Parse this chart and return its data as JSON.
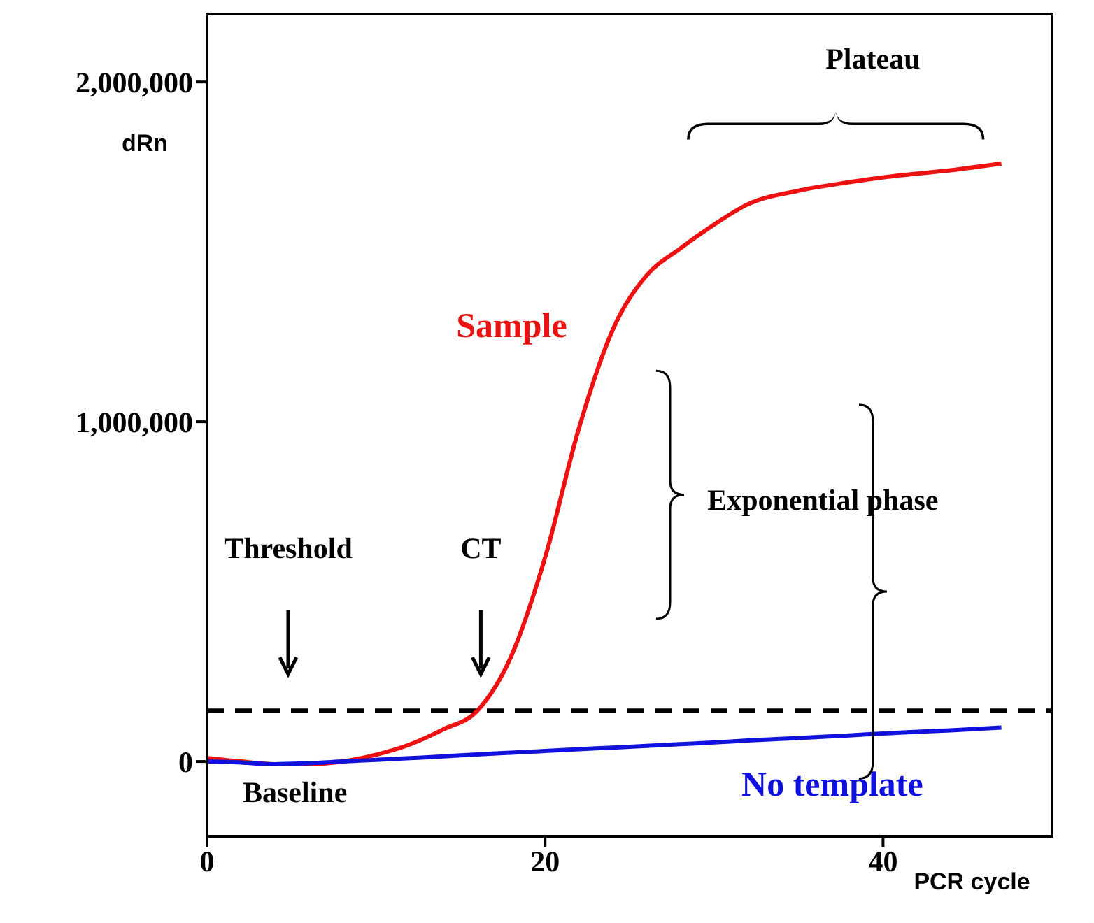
{
  "chart_data": {
    "type": "line",
    "xlabel": "PCR cycle",
    "ylabel": "dRn",
    "x": [
      0,
      2,
      4,
      6,
      8,
      10,
      12,
      14,
      16,
      18,
      20,
      22,
      24,
      26,
      28,
      30,
      32,
      35,
      38,
      41,
      44,
      47
    ],
    "series": [
      {
        "name": "Sample",
        "color": "#ee1111",
        "values": [
          10000,
          0,
          -8000,
          -8000,
          0,
          20000,
          50000,
          95000,
          150000,
          310000,
          600000,
          980000,
          1270000,
          1430000,
          1510000,
          1580000,
          1640000,
          1680000,
          1705000,
          1725000,
          1740000,
          1760000
        ]
      },
      {
        "name": "No template",
        "color": "#1111dd",
        "values": [
          0,
          -3000,
          -8000,
          -5000,
          0,
          5000,
          10000,
          15000,
          21000,
          26000,
          31000,
          36000,
          41000,
          46000,
          51000,
          56000,
          62000,
          69000,
          77000,
          85000,
          92000,
          100000
        ]
      }
    ],
    "xlim": [
      0,
      50
    ],
    "xticks": [
      0,
      20,
      40
    ],
    "ylim": [
      -220000,
      2200000
    ],
    "yticks": [
      {
        "value": 0,
        "label": "0"
      },
      {
        "value": 1000000,
        "label": "1,000,000"
      },
      {
        "value": 2000000,
        "label": "2,000,000"
      }
    ],
    "ref_lines": [
      {
        "axis": "y",
        "value": 150000,
        "color": "#000000",
        "line_style": "dashed"
      }
    ],
    "annotations": [
      "Threshold",
      "CT",
      "Plateau",
      "Exponential phase",
      "Baseline"
    ],
    "grid": false,
    "legend": false,
    "marker": "none",
    "line_style": "solid"
  }
}
